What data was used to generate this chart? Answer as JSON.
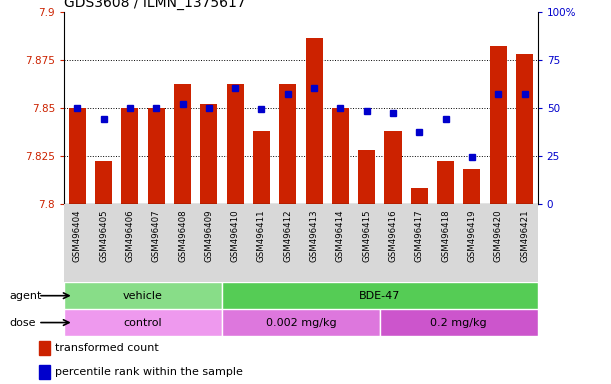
{
  "title": "GDS3608 / ILMN_1375617",
  "samples": [
    "GSM496404",
    "GSM496405",
    "GSM496406",
    "GSM496407",
    "GSM496408",
    "GSM496409",
    "GSM496410",
    "GSM496411",
    "GSM496412",
    "GSM496413",
    "GSM496414",
    "GSM496415",
    "GSM496416",
    "GSM496417",
    "GSM496418",
    "GSM496419",
    "GSM496420",
    "GSM496421"
  ],
  "bar_values": [
    7.85,
    7.822,
    7.85,
    7.85,
    7.862,
    7.852,
    7.862,
    7.838,
    7.862,
    7.886,
    7.85,
    7.828,
    7.838,
    7.808,
    7.822,
    7.818,
    7.882,
    7.878
  ],
  "percentile_values": [
    50,
    44,
    50,
    50,
    52,
    50,
    60,
    49,
    57,
    60,
    50,
    48,
    47,
    37,
    44,
    24,
    57,
    57
  ],
  "y_min": 7.8,
  "y_max": 7.9,
  "y_ticks": [
    7.8,
    7.825,
    7.85,
    7.875,
    7.9
  ],
  "y_tick_labels": [
    "7.8",
    "7.825",
    "7.85",
    "7.875",
    "7.9"
  ],
  "right_y_ticks": [
    0,
    25,
    50,
    75,
    100
  ],
  "right_y_labels": [
    "0",
    "25",
    "50",
    "75",
    "100%"
  ],
  "bar_color": "#cc2200",
  "dot_color": "#0000cc",
  "agent_groups": [
    {
      "label": "vehicle",
      "start": 0,
      "end": 6,
      "color": "#88dd88"
    },
    {
      "label": "BDE-47",
      "start": 6,
      "end": 18,
      "color": "#55cc55"
    }
  ],
  "dose_groups": [
    {
      "label": "control",
      "start": 0,
      "end": 6,
      "color": "#ee99ee"
    },
    {
      "label": "0.002 mg/kg",
      "start": 6,
      "end": 12,
      "color": "#dd77dd"
    },
    {
      "label": "0.2 mg/kg",
      "start": 12,
      "end": 18,
      "color": "#cc55cc"
    }
  ],
  "legend_items": [
    {
      "label": "transformed count",
      "color": "#cc2200"
    },
    {
      "label": "percentile rank within the sample",
      "color": "#0000cc"
    }
  ],
  "bg_color": "#ffffff",
  "plot_bg": "#ffffff",
  "xlabel_bg": "#d8d8d8"
}
